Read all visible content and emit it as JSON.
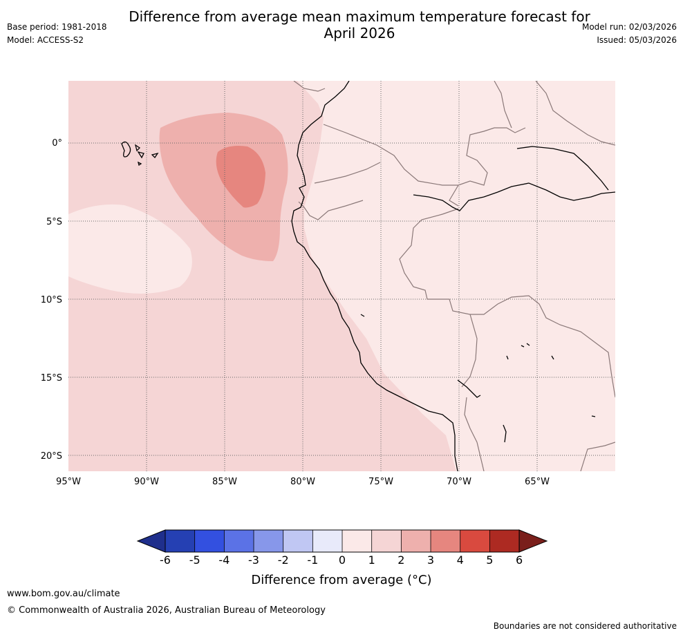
{
  "title_line1": "Difference from average mean maximum temperature forecast for",
  "title_line2": "April 2026",
  "base_period": "Base period: 1981-2018",
  "model": "Model: ACCESS-S2",
  "model_run": "Model run: 02/03/2026",
  "issued": "Issued: 05/03/2026",
  "map": {
    "lon_labels": [
      "95°W",
      "90°W",
      "85°W",
      "80°W",
      "75°W",
      "70°W",
      "65°W"
    ],
    "lat_labels": [
      "0°",
      "5°S",
      "10°S",
      "15°S",
      "20°S"
    ]
  },
  "colorbar": {
    "ticks": [
      "-6",
      "-5",
      "-4",
      "-3",
      "-2",
      "-1",
      "0",
      "1",
      "2",
      "3",
      "4",
      "5",
      "6"
    ],
    "colors": [
      "#1f2f8c",
      "#2540b3",
      "#3350e0",
      "#5b72e6",
      "#8797ea",
      "#c0c7f3",
      "#e8eafa",
      "#fbe9e8",
      "#f5d5d5",
      "#eeb0ad",
      "#e6867f",
      "#d94a3f",
      "#ad2a22",
      "#7a1f1b"
    ],
    "label": "Difference from average (°C)"
  },
  "url": "www.bom.gov.au/climate",
  "copyright": "© Commonwealth of Australia 2026, Australian Bureau of Meteorology",
  "disclaimer": "Boundaries are not considered authoritative"
}
